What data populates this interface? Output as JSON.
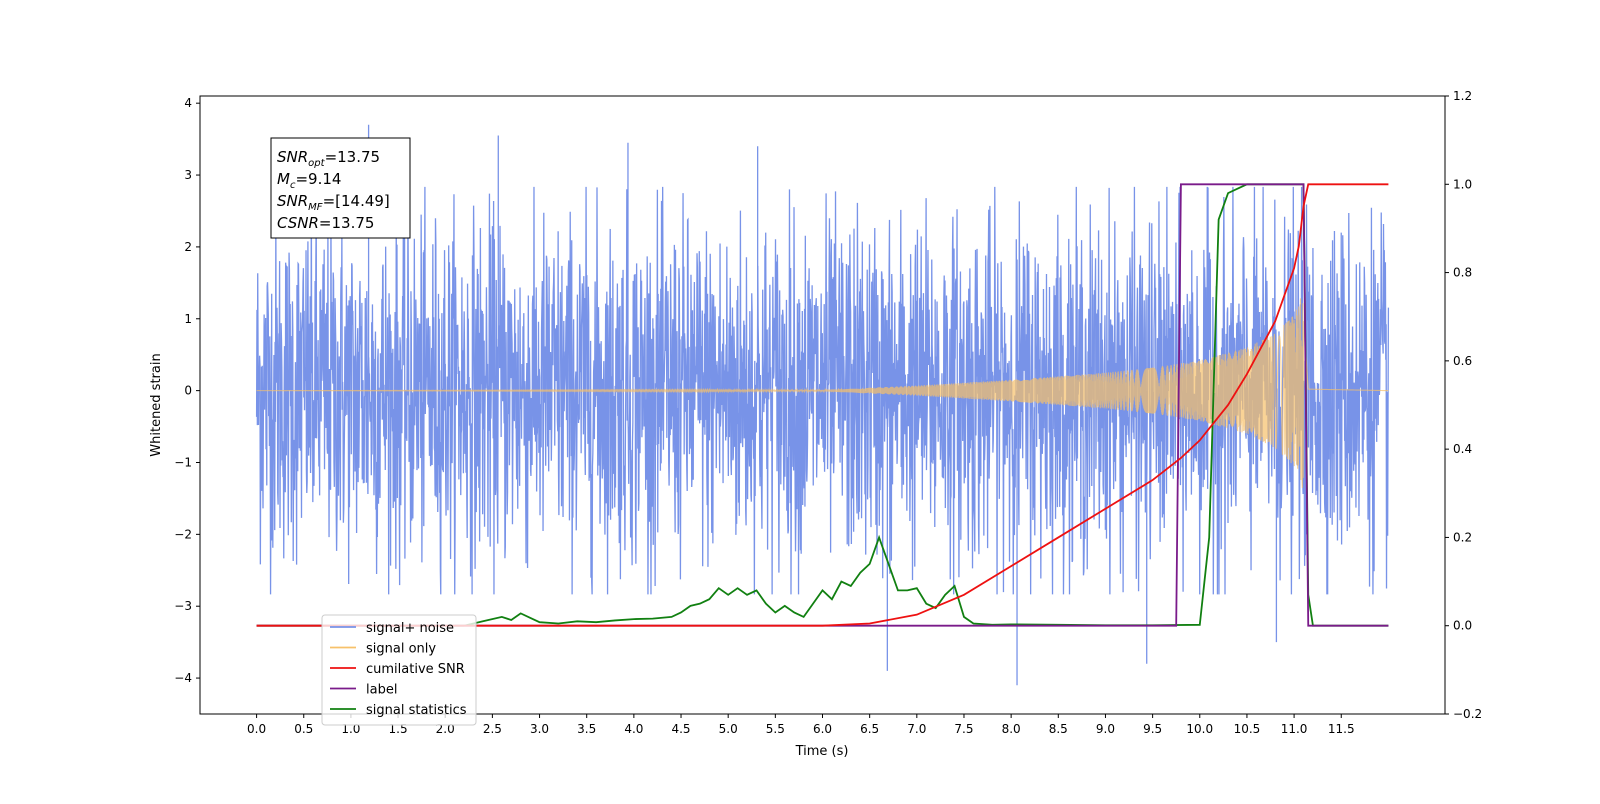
{
  "chart_data": {
    "type": "line",
    "xlabel": "Time (s)",
    "ylabel": "Whitened strain",
    "xlim": [
      -0.6,
      12.6
    ],
    "ylim": [
      -4.5,
      4.1
    ],
    "y2lim": [
      -0.2,
      1.2
    ],
    "x_ticks": [
      0.0,
      0.5,
      1.0,
      1.5,
      2.0,
      2.5,
      3.0,
      3.5,
      4.0,
      4.5,
      5.0,
      5.5,
      6.0,
      6.5,
      7.0,
      7.5,
      8.0,
      8.5,
      9.0,
      9.5,
      10.0,
      10.5,
      11.0,
      11.5
    ],
    "x_tick_labels": [
      "0.0",
      "0.5",
      "1.0",
      "1.5",
      "2.0",
      "2.5",
      "3.0",
      "3.5",
      "4.0",
      "4.5",
      "5.0",
      "5.5",
      "6.0",
      "6.5",
      "7.0",
      "7.5",
      "8.0",
      "8.5",
      "9.0",
      "9.5",
      "10.0",
      "10.5",
      "11.0",
      "11.5"
    ],
    "y_ticks": [
      -4,
      -3,
      -2,
      -1,
      0,
      1,
      2,
      3,
      4
    ],
    "y_tick_labels": [
      "−4",
      "−3",
      "−2",
      "−1",
      "0",
      "1",
      "2",
      "3",
      "4"
    ],
    "y2_ticks": [
      -0.2,
      0.0,
      0.2,
      0.4,
      0.6,
      0.8,
      1.0,
      1.2
    ],
    "y2_tick_labels": [
      "−0.2",
      "0.0",
      "0.2",
      "0.4",
      "0.6",
      "0.8",
      "1.0",
      "1.2"
    ],
    "noise": {
      "x_range": [
        0.0,
        12.0
      ],
      "approx_samples": 3000,
      "typical_abs_max": 2.7,
      "observed_peaks": [
        3.7,
        3.55,
        3.45,
        3.4,
        -3.9,
        -4.1,
        -3.8,
        -3.5
      ]
    },
    "series": [
      {
        "name": "signal+ noise",
        "axis": "left",
        "color": "#7893e8",
        "kind": "noise"
      },
      {
        "name": "signal only",
        "axis": "left",
        "color": "#f7c16a",
        "kind": "chirp",
        "x_range": [
          0.0,
          12.0
        ],
        "envelope_x": [
          0.0,
          6.0,
          7.0,
          8.0,
          9.0,
          9.5,
          10.0,
          10.5,
          10.8,
          11.0,
          11.1,
          11.15,
          12.0
        ],
        "envelope_y": [
          0.0,
          0.01,
          0.07,
          0.15,
          0.25,
          0.32,
          0.42,
          0.6,
          0.8,
          1.05,
          1.4,
          0.03,
          0.0
        ],
        "merger_time": 11.1
      },
      {
        "name": "cumilative SNR",
        "axis": "right",
        "color": "#ee1111",
        "x": [
          0.0,
          6.0,
          6.5,
          7.0,
          7.5,
          8.0,
          8.5,
          9.0,
          9.5,
          9.8,
          10.0,
          10.3,
          10.5,
          10.8,
          11.0,
          11.05,
          11.1,
          11.15,
          12.0
        ],
        "y": [
          0.0,
          0.0,
          0.005,
          0.025,
          0.07,
          0.135,
          0.2,
          0.265,
          0.33,
          0.38,
          0.42,
          0.5,
          0.57,
          0.69,
          0.81,
          0.86,
          0.95,
          1.0,
          1.0
        ]
      },
      {
        "name": "label",
        "axis": "right",
        "color": "#7a1b8a",
        "x": [
          0.0,
          9.75,
          9.8,
          11.1,
          11.15,
          12.0
        ],
        "y": [
          0.0,
          0.0,
          1.0,
          1.0,
          0.0,
          0.0
        ]
      },
      {
        "name": "signal statistics",
        "axis": "right",
        "color": "#118011",
        "x": [
          0.0,
          2.2,
          2.4,
          2.6,
          2.7,
          2.8,
          2.9,
          3.0,
          3.2,
          3.4,
          3.6,
          3.8,
          4.0,
          4.2,
          4.4,
          4.5,
          4.6,
          4.7,
          4.8,
          4.9,
          5.0,
          5.1,
          5.2,
          5.3,
          5.4,
          5.5,
          5.6,
          5.7,
          5.8,
          5.9,
          6.0,
          6.1,
          6.2,
          6.3,
          6.4,
          6.5,
          6.6,
          6.7,
          6.8,
          6.9,
          7.0,
          7.1,
          7.2,
          7.3,
          7.4,
          7.5,
          7.6,
          7.8,
          8.0,
          8.5,
          9.0,
          9.5,
          10.0,
          10.1,
          10.2,
          10.3,
          10.4,
          10.5,
          10.6,
          11.1,
          11.15,
          11.2,
          12.0
        ],
        "y": [
          0.0,
          0.0,
          0.01,
          0.02,
          0.013,
          0.028,
          0.018,
          0.008,
          0.005,
          0.01,
          0.008,
          0.012,
          0.015,
          0.016,
          0.02,
          0.03,
          0.045,
          0.05,
          0.06,
          0.085,
          0.07,
          0.085,
          0.07,
          0.08,
          0.05,
          0.03,
          0.045,
          0.03,
          0.02,
          0.05,
          0.08,
          0.06,
          0.1,
          0.09,
          0.12,
          0.14,
          0.2,
          0.14,
          0.08,
          0.08,
          0.085,
          0.05,
          0.04,
          0.07,
          0.09,
          0.02,
          0.005,
          0.002,
          0.003,
          0.002,
          0.001,
          0.001,
          0.002,
          0.2,
          0.92,
          0.98,
          0.99,
          1.0,
          1.0,
          1.0,
          0.07,
          0.0,
          0.0
        ]
      }
    ],
    "stats_box": {
      "lines": [
        {
          "base": "SNR",
          "sub": "opt",
          "value": "=13.75"
        },
        {
          "base": "M",
          "sub": "c",
          "value": "=9.14"
        },
        {
          "base": "SNR",
          "sub": "MF",
          "value": "=[14.49]"
        },
        {
          "base": "CSNR",
          "sub": "",
          "value": "=13.75"
        }
      ]
    },
    "legend": {
      "placement": "lower-left",
      "entries": [
        "signal+ noise",
        "signal only",
        "cumilative SNR",
        "label",
        "signal statistics"
      ]
    },
    "grid": false
  }
}
